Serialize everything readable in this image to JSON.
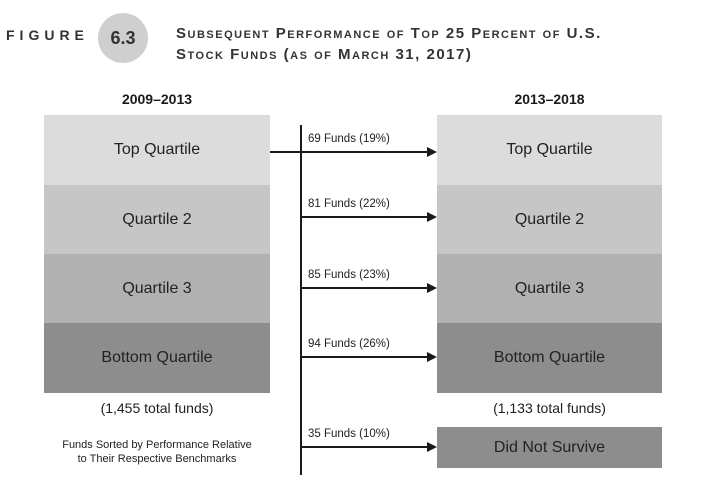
{
  "header": {
    "figure_word": "Figure",
    "figure_number": "6.3",
    "title_line1": "Subsequent Performance of Top 25 Percent of U.S.",
    "title_line2": "Stock Funds (as of March 31, 2017)"
  },
  "left": {
    "period": "2009–2013",
    "quartiles": [
      "Top Quartile",
      "Quartile 2",
      "Quartile 3",
      "Bottom Quartile"
    ],
    "total": "(1,455 total funds)",
    "note_line1": "Funds Sorted by Performance Relative",
    "note_line2": "to Their Respective Benchmarks"
  },
  "right": {
    "period": "2013–2018",
    "quartiles": [
      "Top Quartile",
      "Quartile 2",
      "Quartile 3",
      "Bottom Quartile"
    ],
    "total": "(1,133 total funds)",
    "did_not_survive": "Did Not Survive"
  },
  "flows": [
    "69 Funds (19%)",
    "81 Funds (22%)",
    "85 Funds (23%)",
    "94 Funds (26%)",
    "35 Funds (10%)"
  ],
  "colors": {
    "top_quartile": "#dcdcdc",
    "quartile_2": "#c6c6c6",
    "quartile_3": "#b1b1b1",
    "bottom_quartile": "#8d8d8d",
    "figure_badge": "#cfcfcf"
  }
}
